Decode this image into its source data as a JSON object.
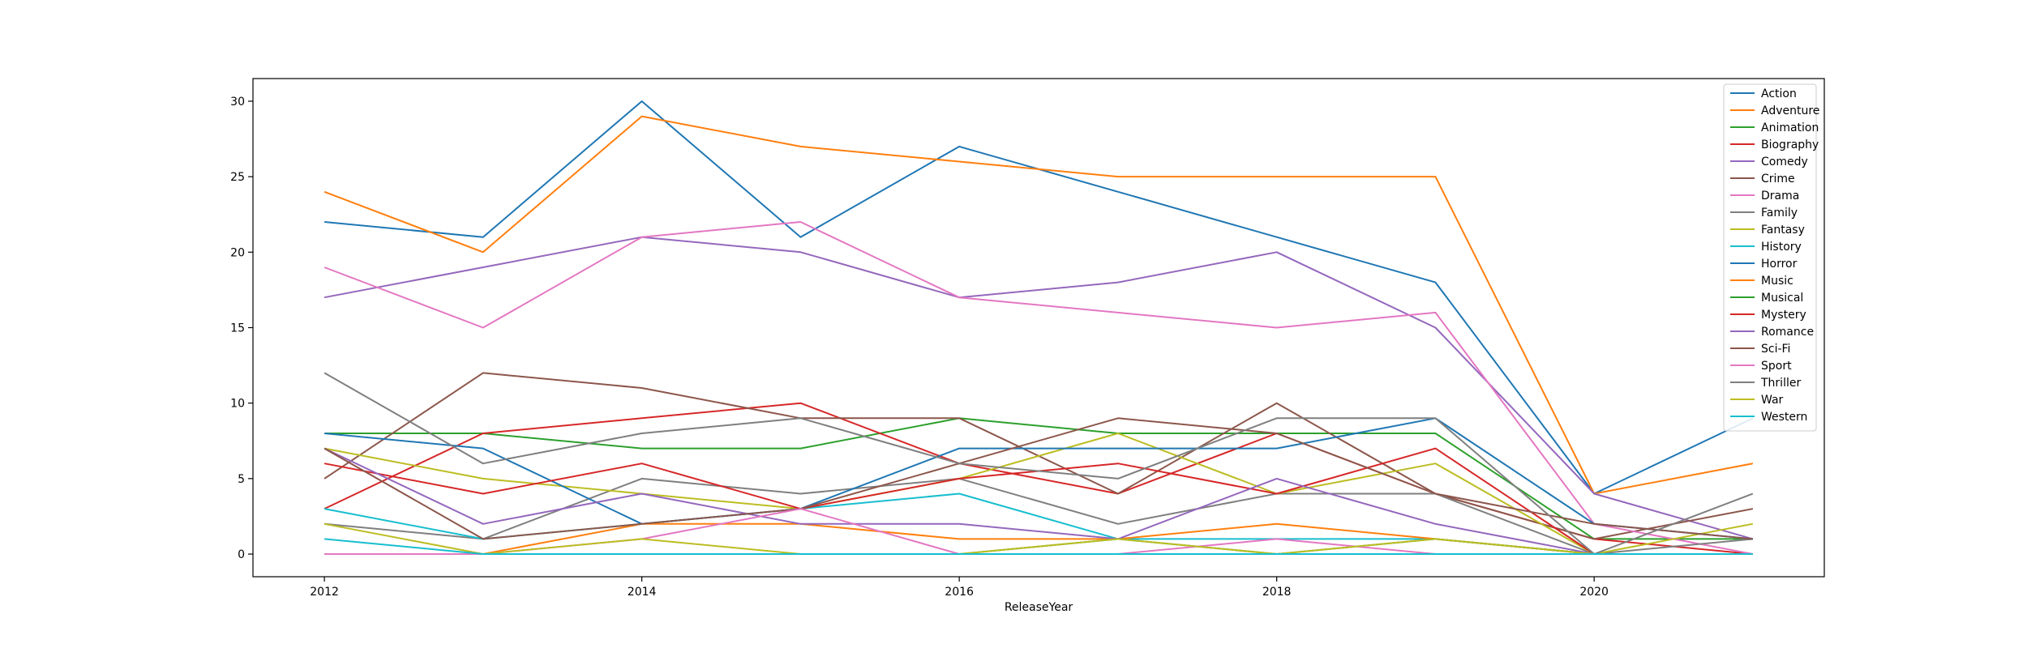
{
  "chart_data": {
    "type": "line",
    "title": "",
    "xlabel": "ReleaseYear",
    "ylabel": "",
    "x": [
      2012,
      2013,
      2014,
      2015,
      2016,
      2017,
      2018,
      2019,
      2020,
      2021
    ],
    "xlim": [
      2011.55,
      2021.45
    ],
    "ylim": [
      -1.5,
      31.5
    ],
    "xticks": [
      2012,
      2014,
      2016,
      2018,
      2020
    ],
    "yticks": [
      0,
      5,
      10,
      15,
      20,
      25,
      30
    ],
    "grid": false,
    "legend_position": "top-right",
    "series": [
      {
        "name": "Action",
        "color": "#1f77b4",
        "values": [
          22,
          21,
          30,
          21,
          27,
          24,
          21,
          18,
          4,
          9
        ]
      },
      {
        "name": "Adventure",
        "color": "#ff7f0e",
        "values": [
          24,
          20,
          29,
          27,
          26,
          25,
          25,
          25,
          4,
          6
        ]
      },
      {
        "name": "Animation",
        "color": "#2ca02c",
        "values": [
          8,
          8,
          7,
          7,
          9,
          8,
          8,
          8,
          1,
          1
        ]
      },
      {
        "name": "Biography",
        "color": "#d62728",
        "values": [
          3,
          8,
          9,
          10,
          6,
          4,
          8,
          4,
          1,
          0
        ]
      },
      {
        "name": "Comedy",
        "color": "#9467bd",
        "values": [
          17,
          19,
          21,
          20,
          17,
          18,
          20,
          15,
          4,
          1
        ]
      },
      {
        "name": "Crime",
        "color": "#8c564b",
        "values": [
          5,
          12,
          11,
          9,
          9,
          4,
          10,
          4,
          1,
          3
        ]
      },
      {
        "name": "Drama",
        "color": "#e377c2",
        "values": [
          19,
          15,
          21,
          22,
          17,
          16,
          15,
          16,
          2,
          0
        ]
      },
      {
        "name": "Family",
        "color": "#7f7f7f",
        "values": [
          2,
          1,
          5,
          4,
          5,
          2,
          4,
          4,
          0,
          1
        ]
      },
      {
        "name": "Fantasy",
        "color": "#bcbd22",
        "values": [
          7,
          5,
          4,
          3,
          5,
          8,
          4,
          6,
          0,
          2
        ]
      },
      {
        "name": "History",
        "color": "#17becf",
        "values": [
          3,
          1,
          2,
          3,
          4,
          1,
          1,
          1,
          0,
          0
        ]
      },
      {
        "name": "Horror",
        "color": "#1f77b4",
        "values": [
          8,
          7,
          2,
          3,
          7,
          7,
          7,
          9,
          2,
          1
        ]
      },
      {
        "name": "Music",
        "color": "#ff7f0e",
        "values": [
          0,
          0,
          2,
          2,
          1,
          1,
          2,
          1,
          0,
          0
        ]
      },
      {
        "name": "Musical",
        "color": "#2ca02c",
        "values": [
          0,
          0,
          0,
          0,
          0,
          1,
          0,
          1,
          0,
          0
        ]
      },
      {
        "name": "Mystery",
        "color": "#d62728",
        "values": [
          6,
          4,
          6,
          3,
          5,
          6,
          4,
          7,
          0,
          0
        ]
      },
      {
        "name": "Romance",
        "color": "#9467bd",
        "values": [
          7,
          2,
          4,
          2,
          2,
          1,
          5,
          2,
          0,
          0
        ]
      },
      {
        "name": "Sci-Fi",
        "color": "#8c564b",
        "values": [
          7,
          1,
          2,
          3,
          6,
          9,
          8,
          4,
          2,
          1
        ]
      },
      {
        "name": "Sport",
        "color": "#e377c2",
        "values": [
          0,
          0,
          1,
          3,
          0,
          0,
          1,
          0,
          0,
          0
        ]
      },
      {
        "name": "Thriller",
        "color": "#7f7f7f",
        "values": [
          12,
          6,
          8,
          9,
          6,
          5,
          9,
          9,
          0,
          4
        ]
      },
      {
        "name": "War",
        "color": "#bcbd22",
        "values": [
          2,
          0,
          1,
          0,
          0,
          1,
          0,
          1,
          0,
          0
        ]
      },
      {
        "name": "Western",
        "color": "#17becf",
        "values": [
          1,
          0,
          0,
          0,
          0,
          0,
          0,
          0,
          0,
          0
        ]
      }
    ]
  }
}
